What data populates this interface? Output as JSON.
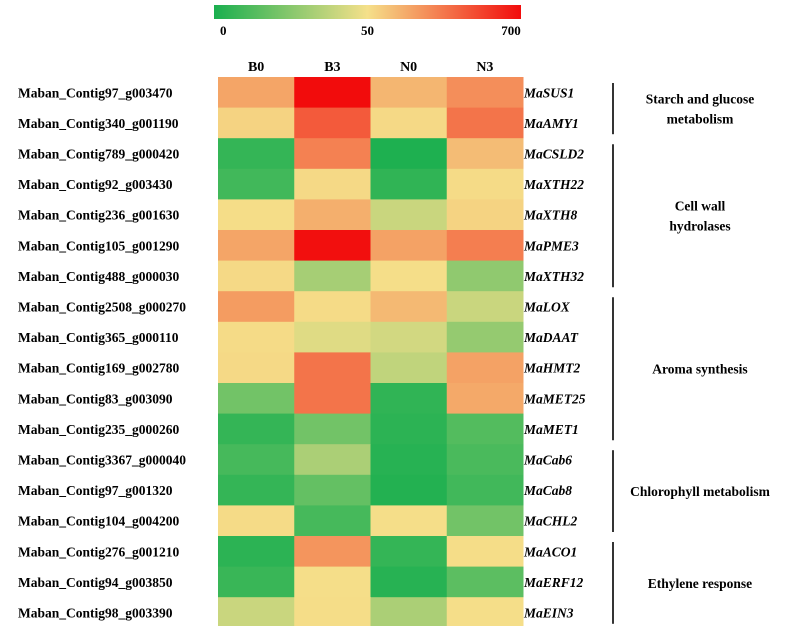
{
  "chart_data": {
    "type": "heatmap",
    "color_scale": {
      "min": 0,
      "mid": 50,
      "max": 700,
      "tick_labels": [
        "0",
        "50",
        "700"
      ],
      "colors": {
        "low": "#1aaf4f",
        "mid": "#f5e08a",
        "high": "#f20c0c"
      }
    },
    "columns": [
      "B0",
      "B3",
      "N0",
      "N3"
    ],
    "rows": [
      {
        "id": "Maban_Contig97_g003470",
        "gene": "MaSUS1",
        "values": [
          230,
          700,
          180,
          300
        ]
      },
      {
        "id": "Maban_Contig340_g001190",
        "gene": "MaAMY1",
        "values": [
          90,
          460,
          70,
          380
        ]
      },
      {
        "id": "Maban_Contig789_g000420",
        "gene": "MaCSLD2",
        "values": [
          6,
          340,
          1,
          160
        ]
      },
      {
        "id": "Maban_Contig92_g003430",
        "gene": "MaXTH22",
        "values": [
          9,
          70,
          5,
          65
        ]
      },
      {
        "id": "Maban_Contig236_g001630",
        "gene": "MaXTH8",
        "values": [
          60,
          200,
          40,
          90
        ]
      },
      {
        "id": "Maban_Contig105_g001290",
        "gene": "MaPME3",
        "values": [
          230,
          690,
          240,
          350
        ]
      },
      {
        "id": "Maban_Contig488_g000030",
        "gene": "MaXTH32",
        "values": [
          70,
          32,
          55,
          27
        ]
      },
      {
        "id": "Maban_Contig2508_g000270",
        "gene": "MaLOX",
        "values": [
          260,
          65,
          170,
          40
        ]
      },
      {
        "id": "Maban_Contig365_g000110",
        "gene": "MaDAAT",
        "values": [
          65,
          45,
          42,
          28
        ]
      },
      {
        "id": "Maban_Contig169_g002780",
        "gene": "MaHMT2",
        "values": [
          70,
          380,
          38,
          240
        ]
      },
      {
        "id": "Maban_Contig83_g003090",
        "gene": "MaMET25",
        "values": [
          20,
          380,
          5,
          220
        ]
      },
      {
        "id": "Maban_Contig235_g000260",
        "gene": "MaMET1",
        "values": [
          6,
          20,
          4,
          13
        ]
      },
      {
        "id": "Maban_Contig3367_g000040",
        "gene": "MaCab6",
        "values": [
          10,
          33,
          3,
          11
        ]
      },
      {
        "id": "Maban_Contig97_g001320",
        "gene": "MaCab8",
        "values": [
          6,
          17,
          2,
          9
        ]
      },
      {
        "id": "Maban_Contig104_g004200",
        "gene": "MaCHL2",
        "values": [
          65,
          10,
          55,
          20
        ]
      },
      {
        "id": "Maban_Contig276_g001210",
        "gene": "MaACO1",
        "values": [
          4,
          280,
          6,
          60
        ]
      },
      {
        "id": "Maban_Contig94_g003850",
        "gene": "MaERF12",
        "values": [
          7,
          55,
          3,
          15
        ]
      },
      {
        "id": "Maban_Contig98_g003390",
        "gene": "MaEIN3",
        "values": [
          40,
          60,
          33,
          55
        ]
      }
    ],
    "groups": [
      {
        "lines": [
          "Starch and glucose",
          "metabolism"
        ],
        "start_row": 0,
        "end_row": 1
      },
      {
        "lines": [
          "Cell wall",
          "hydrolases"
        ],
        "start_row": 2,
        "end_row": 6
      },
      {
        "lines": [
          "Aroma synthesis"
        ],
        "start_row": 7,
        "end_row": 11
      },
      {
        "lines": [
          "Chlorophyll metabolism"
        ],
        "start_row": 12,
        "end_row": 14
      },
      {
        "lines": [
          "Ethylene response"
        ],
        "start_row": 15,
        "end_row": 17
      }
    ]
  }
}
